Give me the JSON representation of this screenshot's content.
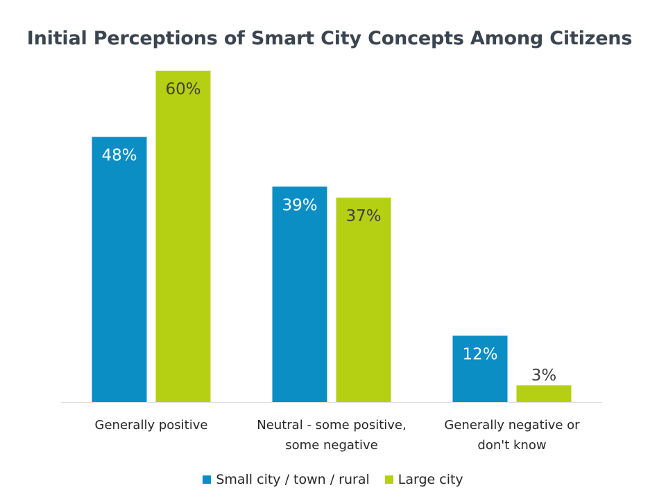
{
  "chart_data": {
    "type": "bar",
    "title": "Initial Perceptions of Smart City Concepts Among Citizens",
    "categories": [
      [
        "Generally positive"
      ],
      [
        "Neutral - some positive,",
        "some negative"
      ],
      [
        "Generally negative or",
        "don't know"
      ]
    ],
    "series": [
      {
        "name": "Small city / town / rural",
        "values": [
          48,
          39,
          12
        ],
        "labels": [
          "48%",
          "39%",
          "12%"
        ],
        "color": "#0a8ec4"
      },
      {
        "name": "Large city",
        "values": [
          60,
          37,
          3
        ],
        "labels": [
          "60%",
          "37%",
          "3%"
        ],
        "color": "#b5d012"
      }
    ],
    "ylim": [
      0,
      60
    ],
    "grid": false,
    "legend_position": "bottom"
  }
}
